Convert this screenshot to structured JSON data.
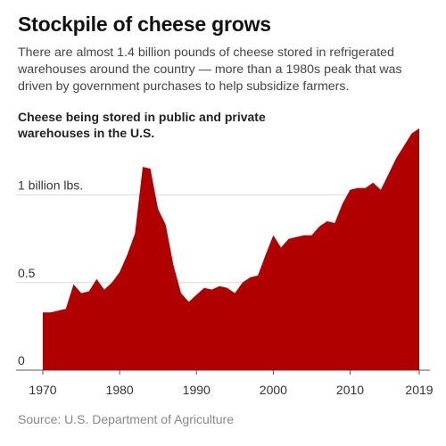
{
  "header": {
    "title": "Stockpile of cheese grows",
    "subtitle": "There are almost 1.4 billion pounds of cheese stored in refrigerated warehouses around the country — more than a 1980s peak that was driven by government purchases to help subsidize farmers."
  },
  "source": "Source: U.S. Department of Agriculture",
  "colors": {
    "area": "#b00000",
    "grid": "#d9d9d9",
    "baseline": "#555555"
  },
  "chart_data": {
    "type": "area",
    "title": "Cheese being stored in public and private warehouses in the U.S.",
    "xlabel": "",
    "ylabel": "",
    "x": [
      1970,
      1971,
      1972,
      1973,
      1974,
      1975,
      1976,
      1977,
      1978,
      1979,
      1980,
      1981,
      1982,
      1983,
      1984,
      1985,
      1986,
      1987,
      1988,
      1989,
      1990,
      1991,
      1992,
      1993,
      1994,
      1995,
      1996,
      1997,
      1998,
      1999,
      2000,
      2001,
      2002,
      2003,
      2004,
      2005,
      2006,
      2007,
      2008,
      2009,
      2010,
      2011,
      2012,
      2013,
      2014,
      2015,
      2016,
      2017,
      2018,
      2019
    ],
    "series": [
      {
        "values": [
          0.33,
          0.33,
          0.34,
          0.35,
          0.49,
          0.44,
          0.45,
          0.52,
          0.46,
          0.5,
          0.56,
          0.66,
          0.78,
          1.16,
          1.15,
          0.92,
          0.83,
          0.6,
          0.44,
          0.39,
          0.43,
          0.47,
          0.46,
          0.48,
          0.47,
          0.44,
          0.5,
          0.53,
          0.54,
          0.66,
          0.77,
          0.7,
          0.75,
          0.76,
          0.77,
          0.77,
          0.82,
          0.85,
          0.84,
          0.95,
          1.03,
          1.04,
          1.04,
          1.07,
          1.03,
          1.12,
          1.21,
          1.28,
          1.35,
          1.38
        ]
      }
    ],
    "xlim": [
      1970,
      2019
    ],
    "ylim": [
      0,
      1.4
    ],
    "y_ticks": [
      {
        "value": 0,
        "label": "0"
      },
      {
        "value": 0.5,
        "label": "0.5"
      },
      {
        "value": 1.0,
        "label": "1 billion lbs."
      }
    ],
    "x_ticks": [
      {
        "value": 1970,
        "label": "1970"
      },
      {
        "value": 1980,
        "label": "1980"
      },
      {
        "value": 1990,
        "label": "1990"
      },
      {
        "value": 2000,
        "label": "2000"
      },
      {
        "value": 2010,
        "label": "2010"
      },
      {
        "value": 2019,
        "label": "2019"
      }
    ],
    "grid": true,
    "legend": "none"
  }
}
